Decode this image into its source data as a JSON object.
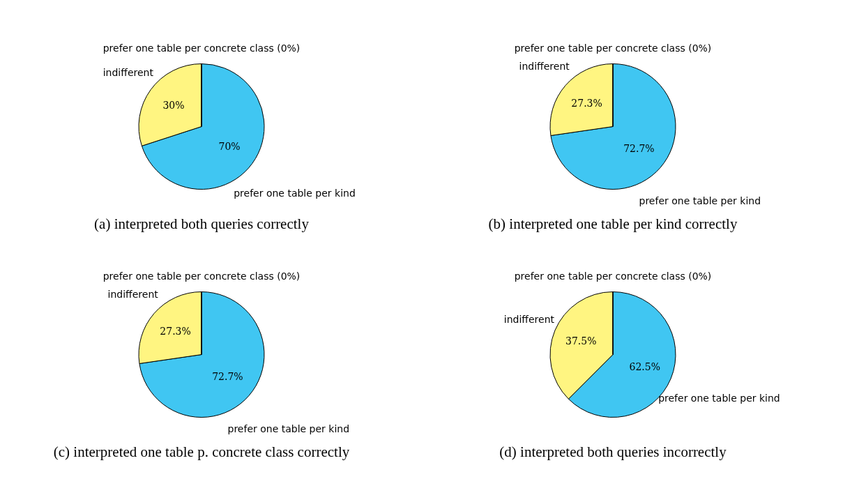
{
  "chart_data": [
    {
      "type": "pie",
      "title": "(a) interpreted both queries correctly",
      "categories": [
        "prefer one table per kind",
        "indifferent",
        "prefer one table per concrete class (0%)"
      ],
      "values": [
        70,
        30,
        0
      ],
      "value_labels": [
        "70%",
        "30%",
        null
      ],
      "colors": [
        "#40c6f2",
        "#fff581",
        "#d9d9d9"
      ]
    },
    {
      "type": "pie",
      "title": "(b) interpreted one table per kind correctly",
      "categories": [
        "prefer one table per kind",
        "indifferent",
        "prefer one table per concrete class (0%)"
      ],
      "values": [
        72.7,
        27.3,
        0
      ],
      "value_labels": [
        "72.7%",
        "27.3%",
        null
      ],
      "colors": [
        "#40c6f2",
        "#fff581",
        "#d9d9d9"
      ]
    },
    {
      "type": "pie",
      "title": "(c) interpreted one table p. concrete class correctly",
      "categories": [
        "prefer one table per kind",
        "indifferent",
        "prefer one table per concrete class (0%)"
      ],
      "values": [
        72.7,
        27.3,
        0
      ],
      "value_labels": [
        "72.7%",
        "27.3%",
        null
      ],
      "colors": [
        "#40c6f2",
        "#fff581",
        "#d9d9d9"
      ]
    },
    {
      "type": "pie",
      "title": "(d) interpreted both queries incorrectly",
      "categories": [
        "prefer one table per kind",
        "indifferent",
        "prefer one table per concrete class (0%)"
      ],
      "values": [
        62.5,
        37.5,
        0
      ],
      "value_labels": [
        "62.5%",
        "37.5%",
        null
      ],
      "colors": [
        "#40c6f2",
        "#fff581",
        "#d9d9d9"
      ]
    }
  ]
}
